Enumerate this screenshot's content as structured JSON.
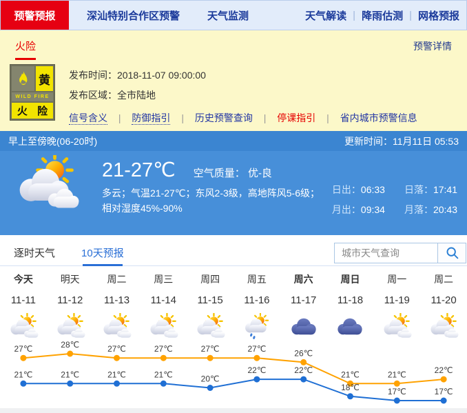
{
  "misc": {
    "separator": "|"
  },
  "colors": {
    "accent_red": "#e60012",
    "nav_blue": "#1b3a9b",
    "panel_yellow": "#fcf8c9",
    "sky_blue": "#478fd9",
    "link_blue": "#2a6fd6",
    "warning_yellow": "#f2e400",
    "high_line": "#ffa200",
    "low_line": "#1f6fd4"
  },
  "topnav": {
    "active_tab": "预警预报",
    "items": [
      "深汕特别合作区预警",
      "天气监测"
    ],
    "right_items": [
      "天气解读",
      "降雨估测",
      "网格预报"
    ]
  },
  "warning_bar": {
    "active_item": "火险",
    "detail_link": "预警详情"
  },
  "alert": {
    "badge": {
      "level": "黄",
      "type_en": "WILD FIRE",
      "type_cn": "火 险"
    },
    "publish_time_label": "发布时间：",
    "publish_time_value": "2018-11-07 09:00:00",
    "publish_area_label": "发布区域：",
    "publish_area_value": "全市陆地",
    "links": [
      "信号含义",
      "防御指引",
      "历史预警查询",
      "停课指引",
      "省内城市预警信息"
    ]
  },
  "current": {
    "period_title": "早上至傍晚(06-20时)",
    "update_time_label": "更新时间：",
    "update_time_value": "11月11日 05:53",
    "temp_range": "21-27℃",
    "air_quality_label": "空气质量：",
    "air_quality_value": "优-良",
    "description_line1": "多云；气温21-27℃；东风2-3级，高地阵风5-6级；",
    "description_line2": "相对湿度45%-90%",
    "sun_moon": {
      "sunrise_label": "日出：",
      "sunrise": "06:33",
      "sunset_label": "日落：",
      "sunset": "17:41",
      "moonrise_label": "月出：",
      "moonrise": "09:34",
      "moonset_label": "月落：",
      "moonset": "20:43"
    }
  },
  "tabs": {
    "hourly": "逐时天气",
    "ten_day": "10天预报",
    "search_placeholder": "城市天气查询"
  },
  "chart_data": {
    "type": "line",
    "title": "10天预报",
    "categories": [
      "今天",
      "明天",
      "周二",
      "周三",
      "周四",
      "周五",
      "周六",
      "周日",
      "周一",
      "周二"
    ],
    "dates": [
      "11-11",
      "11-12",
      "11-13",
      "11-14",
      "11-15",
      "11-16",
      "11-17",
      "11-18",
      "11-19",
      "11-20"
    ],
    "weather_icons": [
      "partly-cloudy",
      "partly-cloudy",
      "partly-cloudy",
      "partly-cloudy",
      "partly-cloudy",
      "shower",
      "cloudy",
      "cloudy",
      "partly-cloudy",
      "partly-cloudy"
    ],
    "bold_day_indexes": [
      0,
      6,
      7
    ],
    "series": [
      {
        "name": "high",
        "color": "#ffa200",
        "values": [
          27,
          28,
          27,
          27,
          27,
          27,
          26,
          21,
          21,
          22
        ]
      },
      {
        "name": "low",
        "color": "#1f6fd4",
        "values": [
          21,
          21,
          21,
          21,
          20,
          22,
          22,
          18,
          17,
          17
        ]
      }
    ],
    "unit": "℃",
    "ylim": [
      15,
      30
    ],
    "grid": false,
    "legend": "none"
  }
}
